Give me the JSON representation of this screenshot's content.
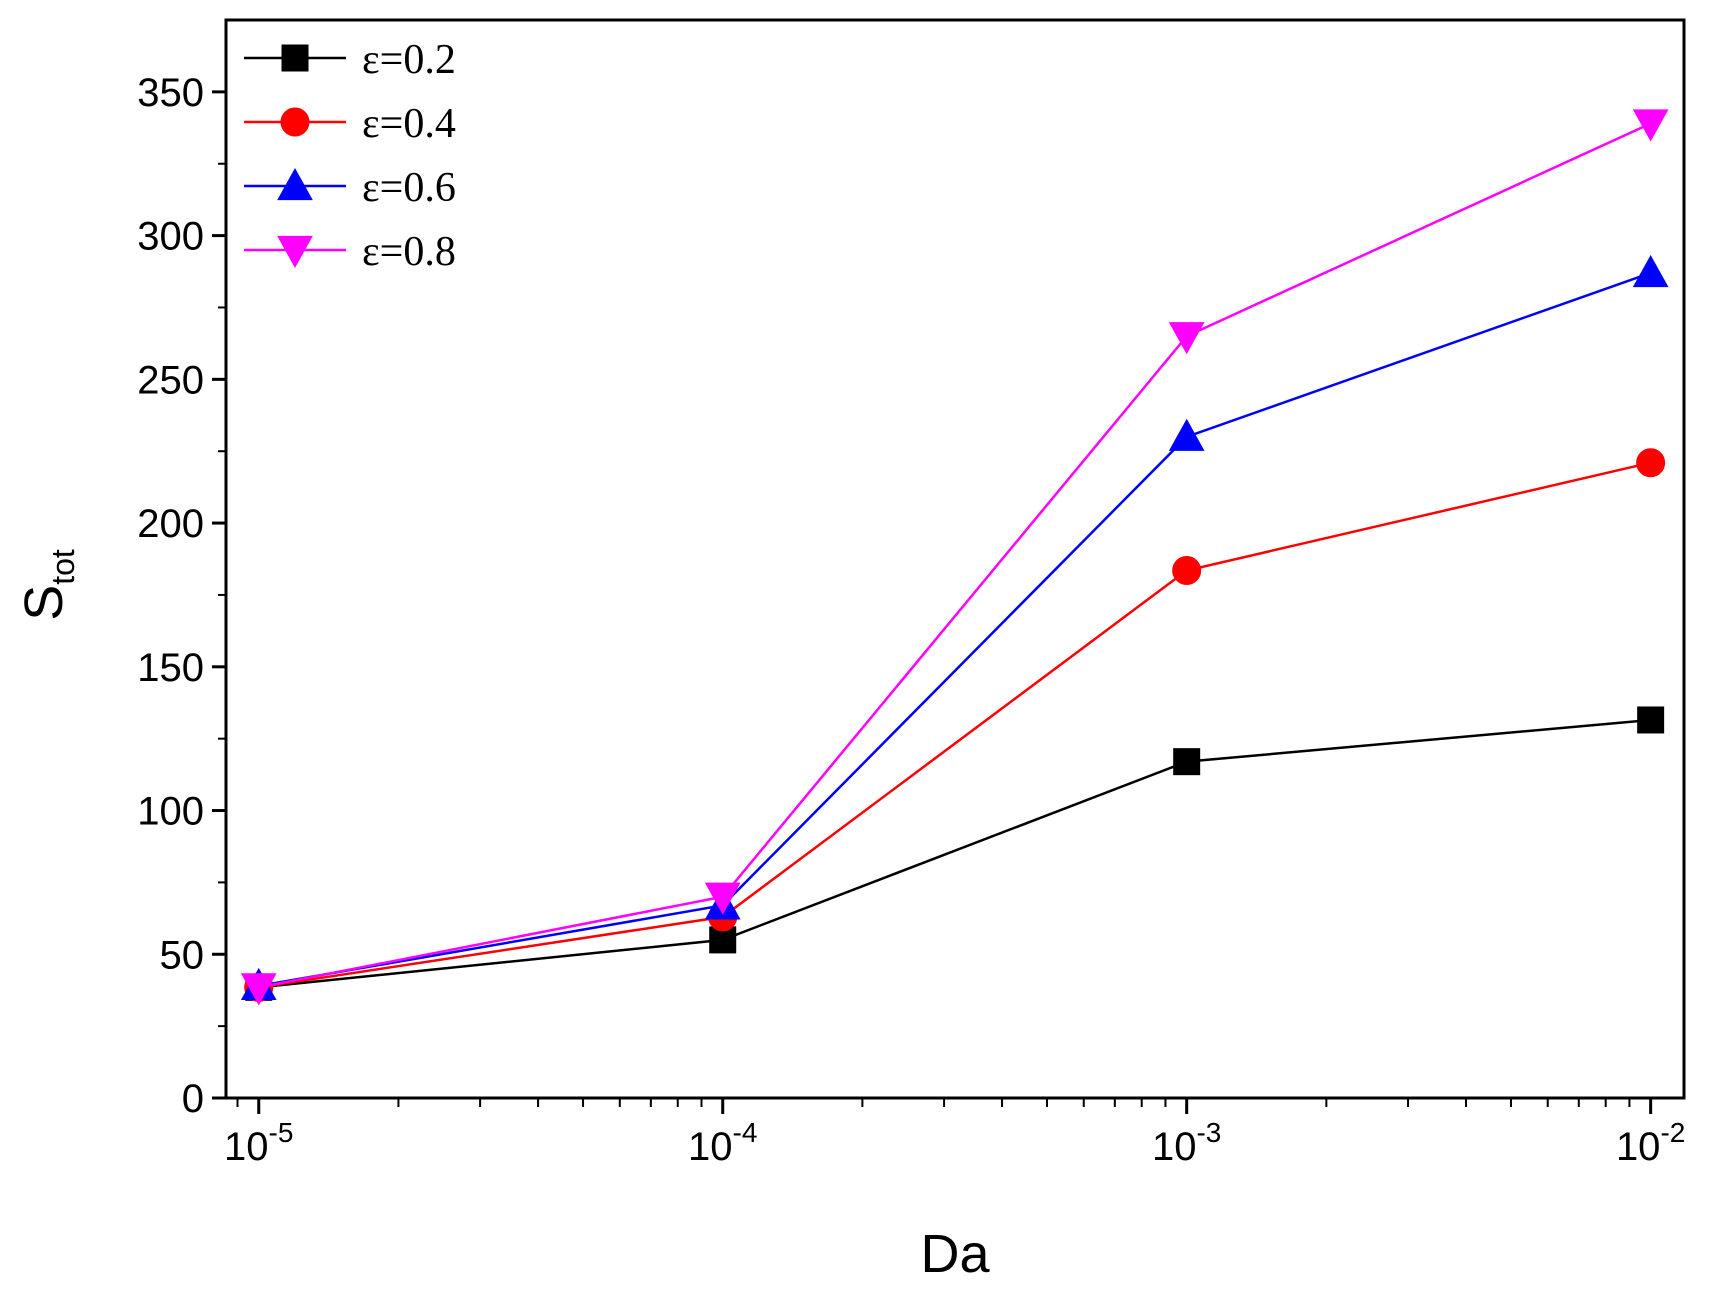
{
  "chart_data": {
    "type": "line",
    "title": "",
    "xlabel": "Da",
    "ylabel": {
      "main": "S",
      "sub": "tot"
    },
    "x_scale": "log",
    "xlim": [
      8.5e-06,
      0.0118
    ],
    "ylim": [
      0,
      375
    ],
    "x_ticks": [
      {
        "value": 1e-05,
        "base": "10",
        "exp": "-5"
      },
      {
        "value": 0.0001,
        "base": "10",
        "exp": "-4"
      },
      {
        "value": 0.001,
        "base": "10",
        "exp": "-3"
      },
      {
        "value": 0.01,
        "base": "10",
        "exp": "-2"
      }
    ],
    "y_ticks": [
      "0",
      "50",
      "100",
      "150",
      "200",
      "250",
      "300",
      "350"
    ],
    "x": [
      1e-05,
      0.0001,
      0.001,
      0.01
    ],
    "series": [
      {
        "name": "ε=0.2",
        "color": "#000000",
        "marker": "square",
        "values": [
          38.5,
          55,
          117,
          131.5
        ]
      },
      {
        "name": "ε=0.4",
        "color": "#ff0000",
        "marker": "circle",
        "values": [
          38.5,
          63,
          183.5,
          221
        ]
      },
      {
        "name": "ε=0.6",
        "color": "#0000ff",
        "marker": "triangle-up",
        "values": [
          39,
          67,
          230,
          287
        ]
      },
      {
        "name": "ε=0.8",
        "color": "#ff00ff",
        "marker": "triangle-down",
        "values": [
          38.5,
          70,
          265,
          339
        ]
      }
    ],
    "legend_position": "top-left",
    "grid": false
  }
}
